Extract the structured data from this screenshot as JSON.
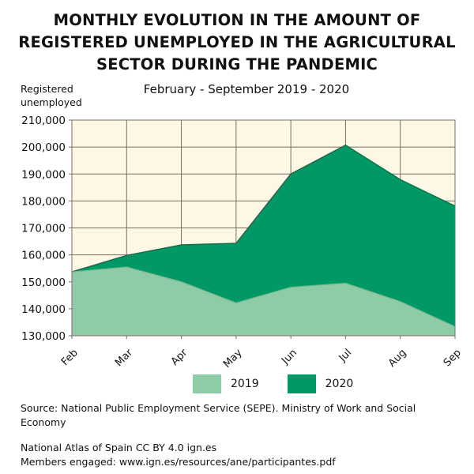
{
  "chart_data": {
    "type": "area",
    "title": "MONTHLY EVOLUTION IN THE AMOUNT OF REGISTERED UNEMPLOYED IN THE AGRICULTURAL SECTOR DURING THE PANDEMIC",
    "subtitle": "February - September 2019 - 2020",
    "ylabel": "Registered unemployed",
    "xlabel": "",
    "categories": [
      "Feb",
      "Mar",
      "Apr",
      "May",
      "Jun",
      "Jul",
      "Aug",
      "Sep"
    ],
    "ylim": [
      130000,
      210000
    ],
    "yticks": [
      "130,000",
      "140,000",
      "150,000",
      "160,000",
      "170,000",
      "180,000",
      "190,000",
      "200,000",
      "210,000"
    ],
    "grid": true,
    "legend_position": "bottom",
    "series": [
      {
        "name": "2019",
        "color": "#8ecba7",
        "values": [
          153700,
          155500,
          150000,
          142200,
          148000,
          149500,
          142700,
          133400
        ]
      },
      {
        "name": "2020",
        "color": "#009966",
        "values": [
          153700,
          159800,
          163700,
          164300,
          190000,
          200700,
          187900,
          178100
        ]
      }
    ],
    "background": "#fdf7e6"
  },
  "footer": {
    "source": "Source: National Public Employment Service (SEPE). Ministry of Work and Social Economy",
    "atlas_line1": "National Atlas of Spain CC BY 4.0 ign.es",
    "atlas_line2": "Members engaged: www.ign.es/resources/ane/participantes.pdf"
  }
}
